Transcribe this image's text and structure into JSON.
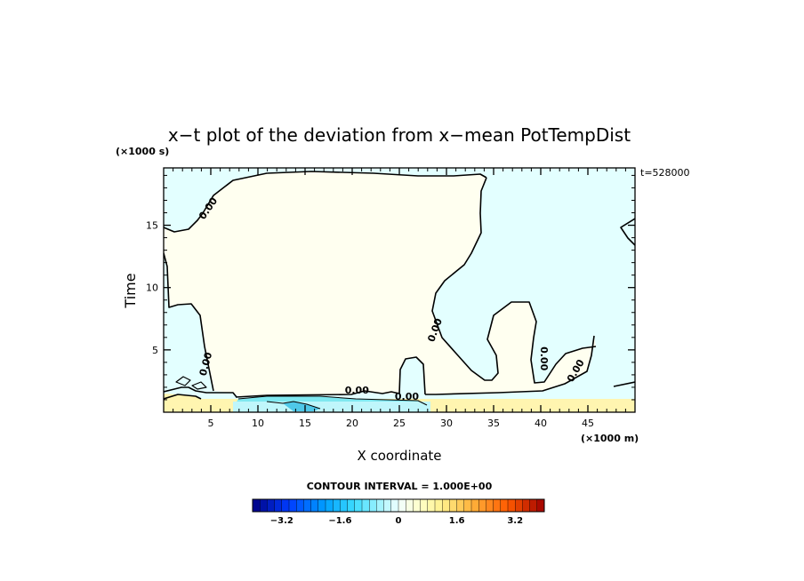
{
  "chart_data": {
    "type": "heatmap",
    "title": "x−t plot of the deviation from x−mean PotTempDist",
    "xlabel": "X coordinate",
    "ylabel": "Time",
    "x_unit": "(×1000 m)",
    "y_unit": "(×1000 s)",
    "time_stamp": "t=528000",
    "xlim": [
      0,
      50
    ],
    "ylim": [
      0,
      19.6
    ],
    "x_ticks": [
      5,
      10,
      15,
      20,
      25,
      30,
      35,
      40,
      45
    ],
    "x_tick_labels": [
      "5",
      "10",
      "15",
      "20",
      "25",
      "30",
      "35",
      "40",
      "45"
    ],
    "y_ticks": [
      5,
      10,
      15
    ],
    "y_tick_labels": [
      "5",
      "10",
      "15"
    ],
    "contour_interval_text": "CONTOUR INTERVAL = 1.000E+00",
    "contour_label": "0.00",
    "contour_labels": [
      {
        "text": "0.00",
        "x": 5,
        "y": 16.2
      },
      {
        "text": "0.00",
        "x": 4.8,
        "y": 3.8
      },
      {
        "text": "0.00",
        "x": 20.5,
        "y": 1.5
      },
      {
        "text": "0.00",
        "x": 25.8,
        "y": 1.0
      },
      {
        "text": "0.00",
        "x": 29.1,
        "y": 6.5
      },
      {
        "text": "0.00",
        "x": 40.0,
        "y": 4.3
      },
      {
        "text": "0.00",
        "x": 44.0,
        "y": 3.2
      }
    ],
    "regions": [
      {
        "level": "slightly negative",
        "color": "#e3ffff",
        "where": "upper left, right side and lower bands"
      },
      {
        "level": "slightly positive",
        "color": "#fffff0",
        "where": "central region"
      },
      {
        "level": "positive",
        "color": "#fff5b0",
        "where": "bottom strip t < 1"
      },
      {
        "level": "negative",
        "color": "#7fe8f0",
        "where": "bottom strip near x = 10–25"
      }
    ],
    "colorbar": {
      "min": -4.0,
      "max": 4.0,
      "step": 0.2,
      "tick_values": [
        -3.2,
        -1.6,
        0,
        1.6,
        3.2
      ],
      "tick_labels": [
        "−3.2",
        "−1.6",
        "0",
        "1.6",
        "3.2"
      ]
    }
  }
}
